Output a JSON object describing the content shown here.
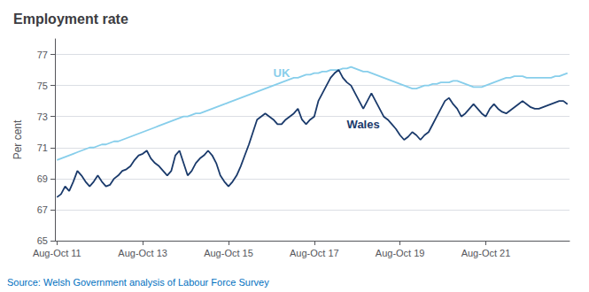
{
  "chart_data": {
    "type": "line",
    "title": "Employment rate",
    "ylabel": "Per cent",
    "source": {
      "text": "Source: Welsh Government analysis of Labour Force Survey",
      "color": "#0070C0"
    },
    "categories": [
      "Aug-Oct 11",
      null,
      null,
      null,
      null,
      null,
      null,
      null,
      null,
      null,
      null,
      null,
      null,
      null,
      null,
      null,
      null,
      null,
      null,
      null,
      null,
      "Aug-Oct 13",
      null,
      null,
      null,
      null,
      null,
      null,
      null,
      null,
      null,
      null,
      null,
      null,
      null,
      null,
      null,
      null,
      null,
      null,
      null,
      null,
      "Aug-Oct 15",
      null,
      null,
      null,
      null,
      null,
      null,
      null,
      null,
      null,
      null,
      null,
      null,
      null,
      null,
      null,
      null,
      null,
      null,
      null,
      null,
      "Aug-Oct 17",
      null,
      null,
      null,
      null,
      null,
      null,
      null,
      null,
      null,
      null,
      null,
      null,
      null,
      null,
      null,
      null,
      null,
      null,
      null,
      null,
      "Aug-Oct 19",
      null,
      null,
      null,
      null,
      null,
      null,
      null,
      null,
      null,
      null,
      null,
      null,
      null,
      null,
      null,
      null,
      null,
      null,
      null,
      null,
      "Aug-Oct 21",
      null,
      null,
      null,
      null,
      null,
      null,
      null,
      null,
      null,
      null,
      null,
      null,
      null,
      null,
      null,
      null,
      null,
      null,
      null,
      null
    ],
    "series": [
      {
        "name": "UK",
        "color": "#87CEEB",
        "values": [
          70.2,
          70.3,
          70.4,
          70.5,
          70.6,
          70.7,
          70.8,
          70.9,
          71.0,
          71.0,
          71.1,
          71.2,
          71.2,
          71.3,
          71.4,
          71.4,
          71.5,
          71.6,
          71.7,
          71.8,
          71.9,
          72.0,
          72.1,
          72.2,
          72.3,
          72.4,
          72.5,
          72.6,
          72.7,
          72.8,
          72.9,
          73.0,
          73.0,
          73.1,
          73.2,
          73.2,
          73.3,
          73.4,
          73.5,
          73.6,
          73.7,
          73.8,
          73.9,
          74.0,
          74.1,
          74.2,
          74.3,
          74.4,
          74.5,
          74.6,
          74.7,
          74.8,
          74.9,
          75.0,
          75.1,
          75.2,
          75.3,
          75.4,
          75.5,
          75.5,
          75.6,
          75.7,
          75.7,
          75.8,
          75.8,
          75.9,
          75.9,
          76.0,
          76.0,
          76.0,
          76.1,
          76.1,
          76.2,
          76.1,
          76.0,
          75.9,
          75.9,
          75.8,
          75.7,
          75.6,
          75.5,
          75.4,
          75.3,
          75.2,
          75.1,
          75.0,
          74.9,
          74.8,
          74.8,
          74.9,
          75.0,
          75.0,
          75.1,
          75.1,
          75.2,
          75.2,
          75.2,
          75.3,
          75.3,
          75.2,
          75.1,
          75.0,
          74.9,
          74.9,
          74.9,
          75.0,
          75.1,
          75.2,
          75.3,
          75.4,
          75.5,
          75.5,
          75.6,
          75.6,
          75.6,
          75.5,
          75.5,
          75.5,
          75.5,
          75.5,
          75.5,
          75.5,
          75.6,
          75.6,
          75.7,
          75.8
        ]
      },
      {
        "name": "Wales",
        "color": "#1a3a6b",
        "values": [
          67.8,
          68.0,
          68.5,
          68.2,
          68.8,
          69.5,
          69.2,
          68.8,
          68.5,
          68.8,
          69.2,
          68.8,
          68.5,
          68.6,
          69.0,
          69.2,
          69.5,
          69.6,
          69.8,
          70.2,
          70.5,
          70.6,
          70.8,
          70.3,
          70.0,
          69.8,
          69.5,
          69.2,
          69.5,
          70.5,
          70.8,
          70.0,
          69.2,
          69.5,
          70.0,
          70.3,
          70.5,
          70.8,
          70.5,
          70.0,
          69.2,
          68.8,
          68.5,
          68.8,
          69.2,
          69.8,
          70.5,
          71.2,
          72.0,
          72.8,
          73.0,
          73.2,
          73.0,
          72.8,
          72.5,
          72.5,
          72.8,
          73.0,
          73.2,
          73.5,
          72.8,
          72.5,
          72.8,
          73.0,
          74.0,
          74.5,
          75.0,
          75.5,
          75.8,
          76.0,
          75.5,
          75.2,
          75.0,
          74.5,
          74.0,
          73.5,
          74.0,
          74.5,
          74.0,
          73.5,
          73.0,
          72.8,
          72.5,
          72.2,
          71.8,
          71.5,
          71.7,
          72.0,
          71.8,
          71.5,
          71.8,
          72.0,
          72.5,
          73.0,
          73.5,
          74.0,
          74.2,
          73.8,
          73.5,
          73.0,
          73.2,
          73.5,
          73.8,
          73.5,
          73.2,
          73.0,
          73.5,
          73.8,
          73.5,
          73.3,
          73.2,
          73.4,
          73.6,
          73.8,
          74.0,
          73.8,
          73.6,
          73.5,
          73.5,
          73.6,
          73.7,
          73.8,
          73.9,
          74.0,
          74.0,
          73.8
        ]
      }
    ],
    "ylim": [
      65,
      78
    ],
    "yticks": [
      65,
      67,
      69,
      71,
      73,
      75,
      77
    ],
    "grid": true,
    "annotations": [
      {
        "text": "UK",
        "x": 55,
        "y": 75.8,
        "color": "#87CEEB"
      },
      {
        "text": "Wales",
        "x": 75,
        "y": 72.5,
        "color": "#1a3a6b"
      }
    ]
  }
}
